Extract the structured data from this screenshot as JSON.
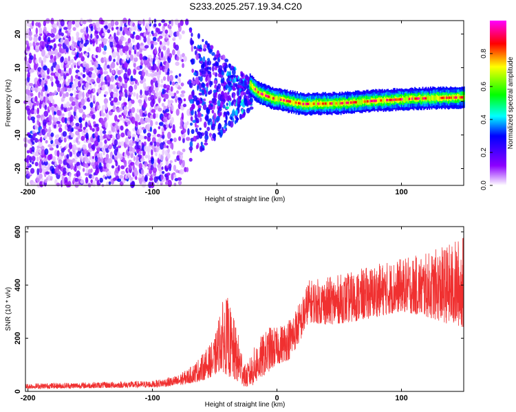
{
  "title": "S233.2025.257.19.34.C20",
  "chart_data": [
    {
      "type": "heatmap",
      "xlabel": "Height of straight line (km)",
      "ylabel": "Frequency (Hz)",
      "xlim": [
        -202,
        150
      ],
      "ylim": [
        -25,
        24
      ],
      "xticks": [
        -200,
        -100,
        0,
        100
      ],
      "yticks": [
        -20,
        -10,
        0,
        10,
        20
      ],
      "colorbar": {
        "label": "Normalized spectral amplitude",
        "range": [
          0,
          1
        ],
        "ticks": [
          0.0,
          0.2,
          0.4,
          0.6,
          0.8
        ],
        "tick_labels": [
          "0.0",
          "0.2",
          "0.4",
          "0.6",
          "0.8"
        ],
        "colors": [
          "#ffffff",
          "#8c00ff",
          "#0000ff",
          "#00ffff",
          "#00ff00",
          "#ffff00",
          "#ff0000",
          "#ff00ff"
        ]
      },
      "features": {
        "noise_region_x": [
          -202,
          -65
        ],
        "noise_density": 0.55,
        "transition_region_x": [
          -70,
          -20
        ],
        "signal_line": [
          {
            "x": -22,
            "f": 5.0
          },
          {
            "x": -15,
            "f": 2.5
          },
          {
            "x": -5,
            "f": 1.0
          },
          {
            "x": 20,
            "f": -0.8
          },
          {
            "x": 50,
            "f": -0.6
          },
          {
            "x": 80,
            "f": 0.2
          },
          {
            "x": 110,
            "f": 0.8
          },
          {
            "x": 150,
            "f": 1.2
          }
        ],
        "signal_peak_amplitude": 0.95
      }
    },
    {
      "type": "line",
      "color": "#f03030",
      "xlabel": "Height of straight line (km)",
      "ylabel": "SNR (10 * v/v)",
      "xlim": [
        -202,
        150
      ],
      "ylim": [
        0,
        620
      ],
      "xticks": [
        -200,
        -100,
        0,
        100
      ],
      "yticks": [
        0,
        200,
        400,
        600
      ],
      "envelope": {
        "x": [
          -202,
          -150,
          -100,
          -80,
          -70,
          -60,
          -50,
          -45,
          -40,
          -35,
          -30,
          -25,
          -20,
          -15,
          -10,
          -5,
          0,
          10,
          20,
          25,
          40,
          60,
          80,
          100,
          120,
          140,
          150
        ],
        "min": [
          10,
          12,
          15,
          20,
          30,
          40,
          60,
          80,
          60,
          40,
          30,
          15,
          20,
          40,
          60,
          80,
          100,
          120,
          200,
          260,
          250,
          260,
          280,
          300,
          280,
          250,
          240
        ],
        "max": [
          30,
          35,
          40,
          60,
          90,
          140,
          200,
          330,
          360,
          280,
          200,
          90,
          150,
          200,
          220,
          250,
          240,
          280,
          350,
          420,
          430,
          450,
          480,
          500,
          520,
          560,
          590
        ]
      }
    }
  ]
}
